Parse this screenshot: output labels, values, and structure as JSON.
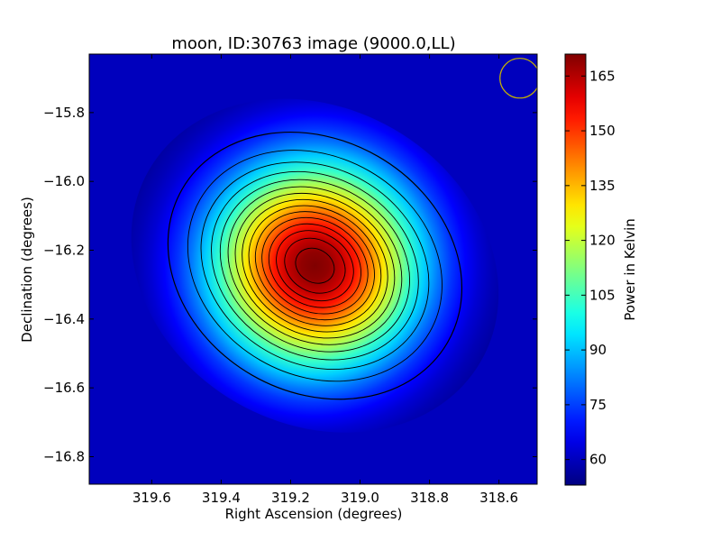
{
  "chart_data": {
    "type": "heatmap",
    "title": "moon, ID:30763 image (9000.0,LL)",
    "xlabel": "Right Ascension (degrees)",
    "ylabel": "Declination (degrees)",
    "xlim": [
      319.78,
      318.49
    ],
    "ylim": [
      -16.88,
      -15.63
    ],
    "x_ticks": [
      319.6,
      319.4,
      319.2,
      319.0,
      318.8,
      318.6
    ],
    "x_tick_labels": [
      "319.6",
      "319.4",
      "319.2",
      "319.0",
      "318.8",
      "318.6"
    ],
    "y_ticks": [
      -15.8,
      -16.0,
      -16.2,
      -16.4,
      -16.6,
      -16.8
    ],
    "y_tick_labels": [
      "−15.8",
      "−16.0",
      "−16.2",
      "−16.4",
      "−16.6",
      "−16.8"
    ],
    "colormap": "jet",
    "source": {
      "peak_ra": 319.13,
      "peak_dec": -16.245,
      "peak_power": 171,
      "background_power": 53,
      "outer_contour_power": 60,
      "contour_step": 7.5
    },
    "beam_marker": {
      "ra": 318.54,
      "dec": -15.7,
      "color": "#c8b400"
    },
    "colorbar": {
      "label": "Power in Kelvin",
      "min": 53,
      "max": 171,
      "ticks": [
        60,
        75,
        90,
        105,
        120,
        135,
        150,
        165
      ],
      "tick_labels": [
        "60",
        "75",
        "90",
        "105",
        "120",
        "135",
        "150",
        "165"
      ]
    }
  }
}
